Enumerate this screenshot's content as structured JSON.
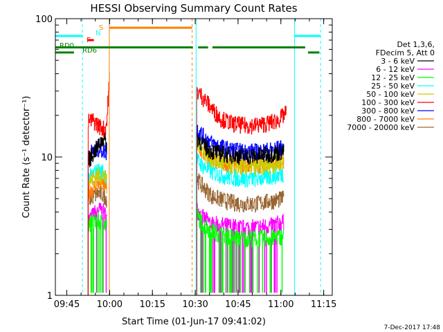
{
  "chart_data": {
    "type": "line",
    "title": "HESSI Observing Summary Count Rates",
    "xlabel": "Start Time (01-Jun-17 09:41:02)",
    "ylabel": "Count Rate (s⁻¹ detector⁻¹)",
    "y_scale": "log",
    "ylim": [
      1,
      100
    ],
    "xlim_minutes_after_0941": [
      0,
      97
    ],
    "x_ticks": [
      {
        "label": "09:45",
        "min": 4
      },
      {
        "label": "10:00",
        "min": 19
      },
      {
        "label": "10:15",
        "min": 34
      },
      {
        "label": "10:30",
        "min": 49
      },
      {
        "label": "10:45",
        "min": 64
      },
      {
        "label": "11:00",
        "min": 79
      },
      {
        "label": "11:15",
        "min": 94
      }
    ],
    "y_ticks": [
      {
        "label": "1",
        "value": 1
      },
      {
        "label": "10",
        "value": 10
      },
      {
        "label": "100",
        "value": 100
      }
    ],
    "legend": {
      "placement": "right",
      "header": [
        "Det 1,3,6,",
        "FDecim 5, Att 0"
      ],
      "entries": [
        {
          "label": "3 - 6 keV",
          "color": "#000000"
        },
        {
          "label": "6 - 12 keV",
          "color": "#ff00ff"
        },
        {
          "label": "12 - 25 keV",
          "color": "#00ff00"
        },
        {
          "label": "25 - 50 keV",
          "color": "#00ffff"
        },
        {
          "label": "50 - 100 keV",
          "color": "#cccc00"
        },
        {
          "label": "100 - 300 keV",
          "color": "#ff0000"
        },
        {
          "label": "300 - 800 keV",
          "color": "#0000ff"
        },
        {
          "label": "800 - 7000 keV",
          "color": "#ff8000"
        },
        {
          "label": "7000 - 20000 keV",
          "color": "#996633"
        }
      ]
    },
    "series": [
      {
        "name": "3 - 6 keV",
        "color": "#000000",
        "segments": [
          {
            "x": [
              11.5,
              13,
              15,
              17,
              18
            ],
            "y": [
              9.5,
              10.5,
              12,
              14,
              12
            ]
          },
          {
            "x": [
              49.5,
              52,
              55,
              60,
              65,
              70,
              75,
              80
            ],
            "y": [
              14,
              12,
              11,
              10.5,
              10.2,
              10.2,
              10.5,
              11
            ]
          }
        ]
      },
      {
        "name": "6 - 12 keV",
        "color": "#ff00ff",
        "segments": [
          {
            "x": [
              11.5,
              13,
              15,
              17,
              18
            ],
            "y": [
              3.5,
              3.8,
              4.2,
              4.0,
              3.6
            ]
          },
          {
            "x": [
              49.5,
              52,
              55,
              60,
              65,
              70,
              75,
              80
            ],
            "y": [
              4.2,
              3.6,
              3.3,
              3.2,
              3.1,
              3.1,
              3.2,
              3.4
            ]
          }
        ]
      },
      {
        "name": "12 - 25 keV",
        "color": "#00ff00",
        "segments": [
          {
            "x": [
              11.5,
              13,
              15,
              17,
              18
            ],
            "y": [
              3.3,
              3.4,
              3.5,
              3.3,
              3.2
            ]
          },
          {
            "x": [
              49.5,
              52,
              55,
              60,
              65,
              70,
              75,
              80
            ],
            "y": [
              3.8,
              3.2,
              2.9,
              2.7,
              2.6,
              2.6,
              2.6,
              2.7
            ]
          }
        ]
      },
      {
        "name": "25 - 50 keV",
        "color": "#00ffff",
        "segments": [
          {
            "x": [
              11.5,
              13,
              15,
              17,
              18
            ],
            "y": [
              7.0,
              7.5,
              8.0,
              7.8,
              7.2
            ]
          },
          {
            "x": [
              49.5,
              52,
              55,
              60,
              65,
              70,
              75,
              80
            ],
            "y": [
              9.5,
              8.5,
              7.8,
              7.2,
              7.0,
              7.0,
              7.2,
              7.6
            ]
          }
        ]
      },
      {
        "name": "50 - 100 keV",
        "color": "#cccc00",
        "segments": [
          {
            "x": [
              11.5,
              13,
              15,
              17,
              18
            ],
            "y": [
              6.5,
              7.0,
              7.5,
              7.3,
              6.8
            ]
          },
          {
            "x": [
              49.5,
              52,
              55,
              60,
              65,
              70,
              75,
              80
            ],
            "y": [
              13,
              11,
              9.5,
              8.8,
              8.5,
              8.5,
              8.7,
              9.2
            ]
          }
        ]
      },
      {
        "name": "100 - 300 keV",
        "color": "#ff0000",
        "segments": [
          {
            "x": [
              11.5,
              13,
              15,
              17,
              18,
              19
            ],
            "y": [
              18,
              18.5,
              17,
              16,
              17.5,
              38
            ]
          },
          {
            "x": [
              49.5,
              51,
              53,
              55,
              58,
              62,
              66,
              70,
              74,
              78,
              81
            ],
            "y": [
              30,
              28,
              25,
              22,
              19,
              17.5,
              17,
              17,
              17.5,
              18.5,
              21
            ]
          }
        ]
      },
      {
        "name": "300 - 800 keV",
        "color": "#0000ff",
        "segments": [
          {
            "x": [
              11.5,
              13,
              15,
              17,
              18
            ],
            "y": [
              10.5,
              11,
              11.5,
              11.2,
              10.8
            ]
          },
          {
            "x": [
              49.5,
              52,
              55,
              60,
              65,
              70,
              75,
              80
            ],
            "y": [
              16,
              14,
              12.5,
              11.5,
              11,
              11,
              11.2,
              11.8
            ]
          }
        ]
      },
      {
        "name": "800 - 7000 keV",
        "color": "#ff8000",
        "segments": [
          {
            "x": [
              11.5,
              13,
              15,
              17,
              18
            ],
            "y": [
              5.5,
              6.0,
              6.5,
              6.3,
              6.0
            ]
          },
          {
            "x": [
              49.5,
              52,
              55,
              60,
              65,
              70,
              75,
              80
            ],
            "y": [
              12,
              10.5,
              9.5,
              9.0,
              8.8,
              8.8,
              9.0,
              9.5
            ]
          }
        ]
      },
      {
        "name": "7000 - 20000 keV",
        "color": "#996633",
        "segments": [
          {
            "x": [
              11.5,
              13,
              15,
              17,
              18
            ],
            "y": [
              5.0,
              5.2,
              5.5,
              5.3,
              5.0
            ]
          },
          {
            "x": [
              49.5,
              52,
              55,
              60,
              65,
              70,
              75,
              80
            ],
            "y": [
              7.0,
              6.0,
              5.2,
              4.8,
              4.6,
              4.6,
              4.8,
              5.0
            ]
          }
        ]
      }
    ],
    "markers": [
      {
        "type": "vline",
        "x": 9.5,
        "color": "#00ffff",
        "dashed": true
      },
      {
        "type": "vline",
        "x": 18.9,
        "color": "#ff8000",
        "dashed": false
      },
      {
        "type": "vline",
        "x": 47.9,
        "color": "#ff8000",
        "dashed": true
      },
      {
        "type": "vline",
        "x": 49.3,
        "color": "#00ffff",
        "dashed": false
      },
      {
        "type": "vline",
        "x": 83.8,
        "color": "#00ffff",
        "dashed": false
      },
      {
        "type": "vline",
        "x": 92.9,
        "color": "#00ffff",
        "dashed": true
      }
    ],
    "flag_bars": [
      {
        "label": "N",
        "label_color": "#00ffff",
        "color": "#00ffff",
        "y": 75,
        "ranges": [
          [
            0,
            9.5
          ],
          [
            83.8,
            92.9
          ]
        ]
      },
      {
        "label": "S",
        "label_color": "#ff8000",
        "color": "#ff8000",
        "y": 86,
        "ranges": [
          [
            18.9,
            47.9
          ]
        ]
      },
      {
        "label": "F",
        "label_color": "#ff0000",
        "color": "#ff0000",
        "y": 70,
        "ranges": [
          [
            11.2,
            13.5
          ]
        ]
      },
      {
        "label": "RD0",
        "label_color": "#008000",
        "color": "#008000",
        "y": 62,
        "ranges": [
          [
            0,
            48.2
          ],
          [
            50,
            53.5
          ],
          [
            55,
            87.5
          ]
        ]
      },
      {
        "label": "RD6",
        "label_color": "#008000",
        "color": "#008000",
        "y": 57,
        "ranges": [
          [
            0,
            6.5
          ],
          [
            88.5,
            92.5
          ]
        ]
      }
    ],
    "footer_date": "7-Dec-2017 17:48"
  }
}
